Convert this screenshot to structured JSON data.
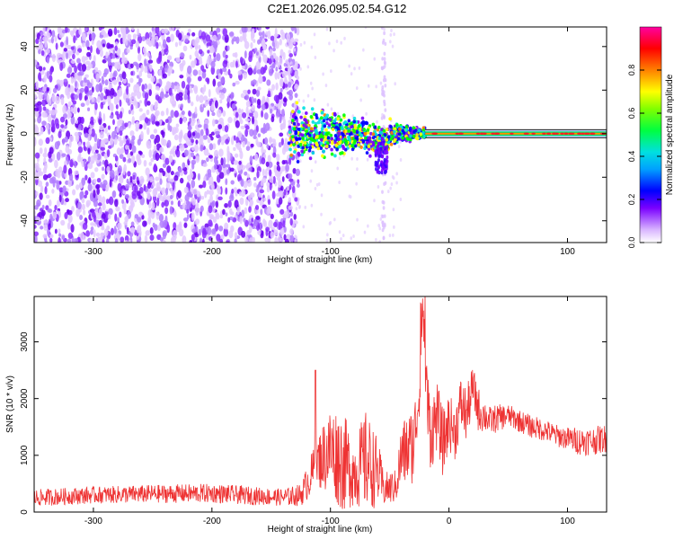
{
  "title": "C2E1.2026.095.02.54.G12",
  "chart_data": [
    {
      "type": "heatmap",
      "xlabel": "Height of straight line (km)",
      "ylabel": "Frequency (Hz)",
      "xlim": [
        -350,
        133
      ],
      "ylim": [
        -50,
        49
      ],
      "xticks": [
        -300,
        -200,
        -100,
        0,
        100
      ],
      "yticks": [
        -40,
        -20,
        0,
        20,
        40
      ],
      "colorbar": {
        "label": "Normalized spectral amplitude",
        "range": [
          0,
          1
        ],
        "ticks": [
          0.0,
          0.2,
          0.4,
          0.6,
          0.8
        ],
        "tick_labels": [
          "0.0",
          "0.2",
          "0.4",
          "0.6",
          "0.8"
        ],
        "colormap": [
          "#ffffff",
          "#d8b4ff",
          "#7a00ff",
          "#0000ff",
          "#00e0e0",
          "#00ff00",
          "#ffff00",
          "#ff8000",
          "#ff0000",
          "#ff00a0"
        ]
      },
      "features": {
        "noise_region_x": [
          -350,
          -135
        ],
        "signal_center_hz": 0,
        "broadened_region_x": [
          -135,
          -20
        ],
        "line_region_x": [
          -20,
          133
        ]
      }
    },
    {
      "type": "line",
      "xlabel": "Height of straight line (km)",
      "ylabel": "SNR (10 * v/v)",
      "xlim": [
        -350,
        133
      ],
      "ylim": [
        0,
        3800
      ],
      "xticks": [
        -300,
        -200,
        -100,
        0,
        100
      ],
      "yticks": [
        0,
        1000,
        2000,
        3000
      ],
      "color": "#ee3333",
      "x": [
        -350,
        -300,
        -250,
        -200,
        -160,
        -140,
        -125,
        -110,
        -100,
        -90,
        -80,
        -70,
        -60,
        -55,
        -45,
        -40,
        -30,
        -25,
        -22,
        -18,
        -15,
        -10,
        -5,
        0,
        5,
        10,
        15,
        20,
        25,
        30,
        35,
        40,
        50,
        60,
        70,
        80,
        90,
        100,
        110,
        120,
        133
      ],
      "values": [
        250,
        300,
        320,
        330,
        280,
        260,
        300,
        900,
        1100,
        900,
        700,
        900,
        700,
        400,
        450,
        1000,
        1200,
        2100,
        3600,
        1800,
        1400,
        1700,
        1200,
        1600,
        1400,
        1900,
        1700,
        2200,
        1800,
        1700,
        1600,
        1650,
        1700,
        1600,
        1500,
        1450,
        1350,
        1300,
        1250,
        1250,
        1300
      ],
      "spread": [
        150,
        150,
        160,
        170,
        160,
        150,
        200,
        500,
        800,
        900,
        600,
        900,
        600,
        300,
        300,
        600,
        700,
        500,
        200,
        800,
        700,
        600,
        600,
        500,
        500,
        500,
        500,
        400,
        400,
        300,
        250,
        250,
        200,
        200,
        200,
        200,
        200,
        200,
        250,
        250,
        250
      ]
    }
  ]
}
